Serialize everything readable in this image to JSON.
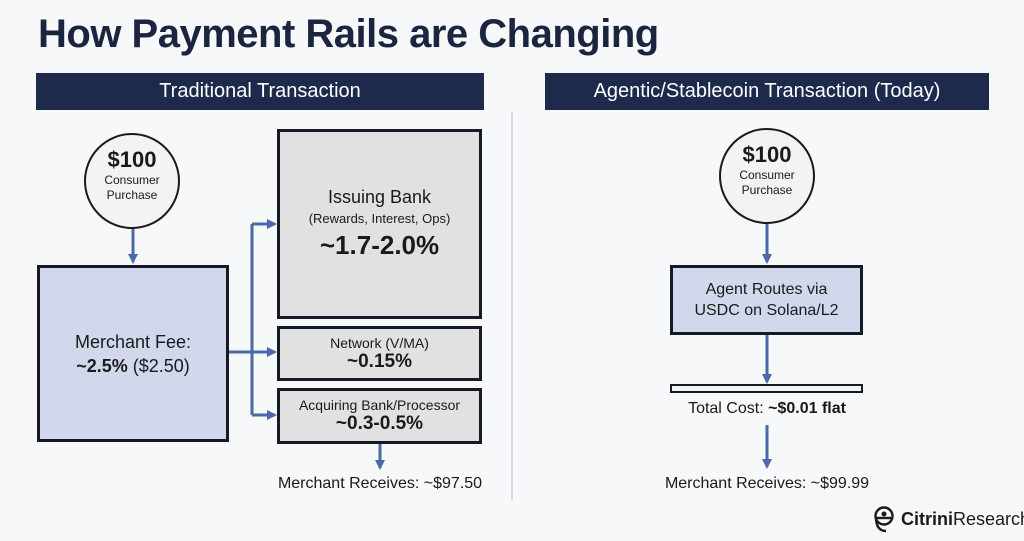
{
  "title": "How Payment Rails are Changing",
  "left": {
    "header": "Traditional Transaction",
    "start": {
      "amount": "$100",
      "label_line1": "Consumer",
      "label_line2": "Purchase"
    },
    "merchant_fee": {
      "label": "Merchant Fee:",
      "percent": "~2.5%",
      "amount": "($2.50)"
    },
    "issuing_bank": {
      "title": "Issuing Bank",
      "detail": "(Rewards, Interest, Ops)",
      "value": "~1.7-2.0%"
    },
    "network": {
      "title": "Network (V/MA)",
      "value": "~0.15%"
    },
    "acquiring": {
      "title": "Acquiring Bank/Processor",
      "value": "~0.3-0.5%"
    },
    "result": "Merchant Receives: ~$97.50"
  },
  "right": {
    "header": "Agentic/Stablecoin Transaction (Today)",
    "start": {
      "amount": "$100",
      "label_line1": "Consumer",
      "label_line2": "Purchase"
    },
    "route": {
      "line1": "Agent Routes via",
      "line2": "USDC on Solana/L2"
    },
    "total_cost": {
      "label": "Total Cost:",
      "value": "~$0.01 flat"
    },
    "result": "Merchant Receives: ~$99.99"
  },
  "logo": {
    "bold": "Citrini",
    "regular": "Research"
  },
  "colors": {
    "navy": "#1e2a4c",
    "arrow": "#4a69a8",
    "fee_box": "#d2d8ec",
    "split_box": "#e1e1e1"
  }
}
